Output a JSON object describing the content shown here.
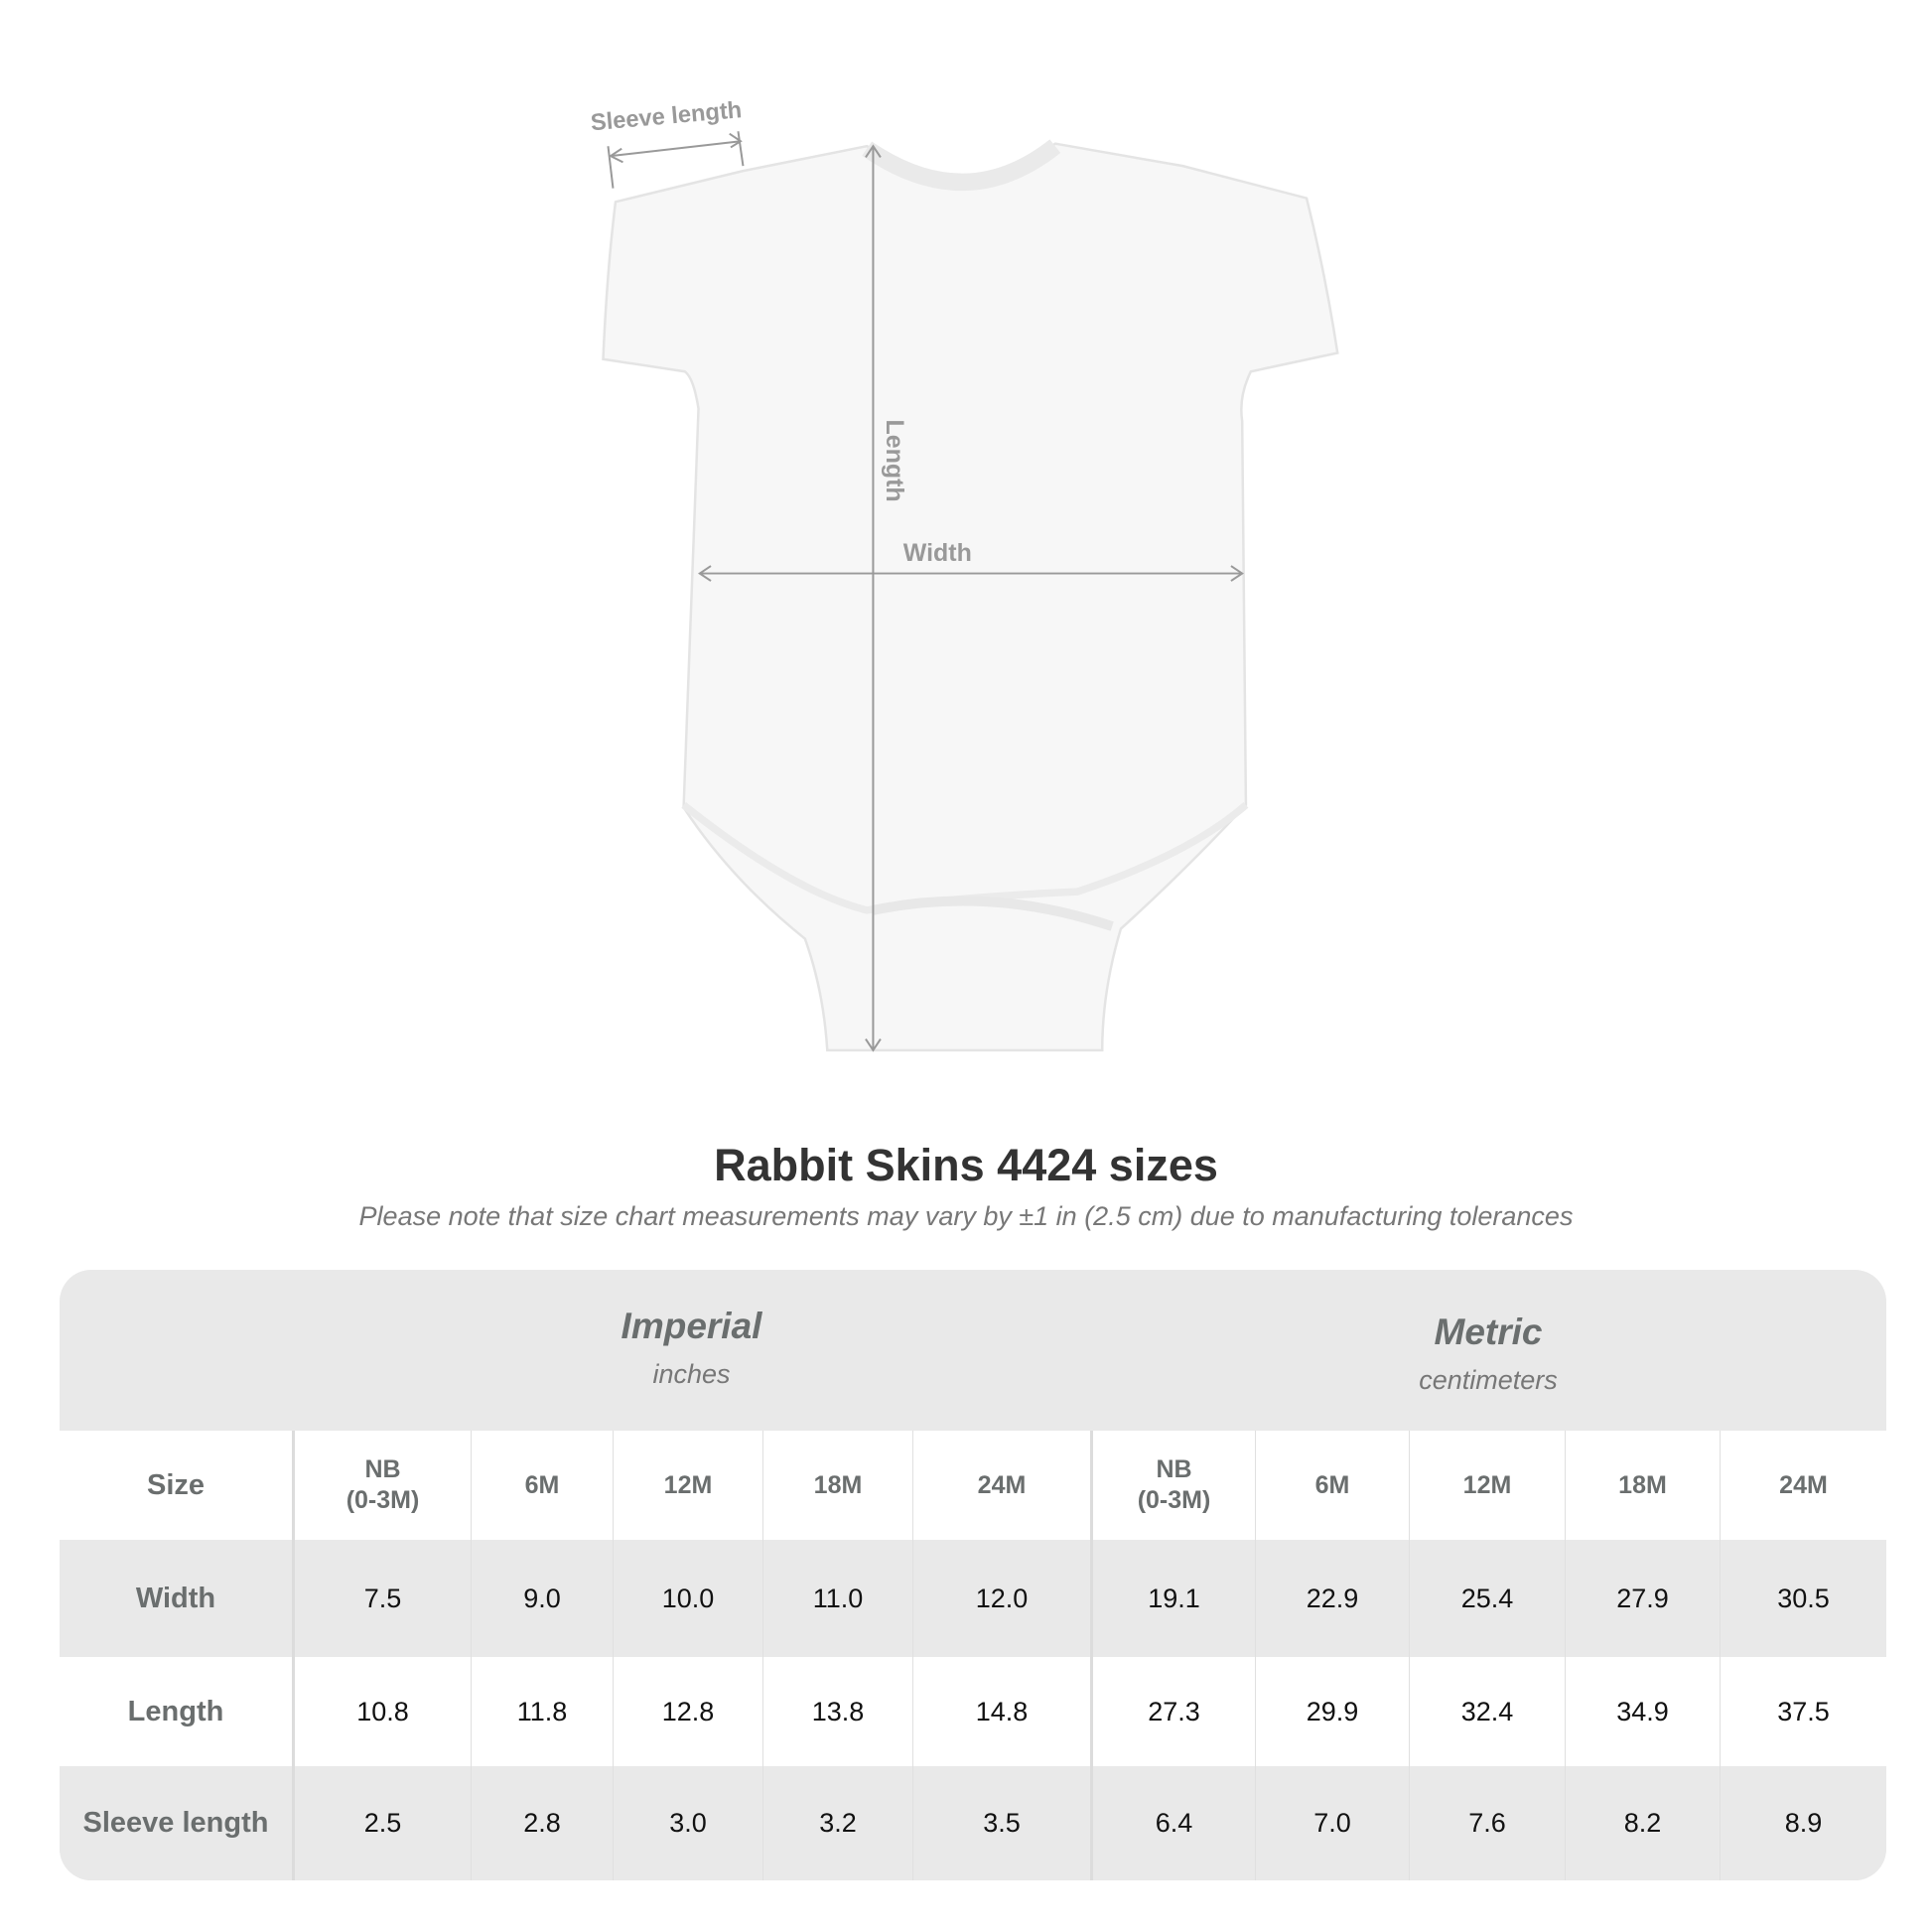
{
  "diagram": {
    "labels": {
      "sleeve": "Sleeve length",
      "length": "Length",
      "width": "Width"
    },
    "garment_color": "#f7f7f7",
    "arrow_color": "#999999"
  },
  "title": "Rabbit Skins 4424 sizes",
  "subtitle": "Please note that size chart measurements may vary by ±1 in (2.5 cm) due to manufacturing tolerances",
  "table": {
    "imperial": {
      "label": "Imperial",
      "unit": "inches"
    },
    "metric": {
      "label": "Metric",
      "unit": "centimeters"
    },
    "size_label": "Size",
    "sizes": [
      "NB\n(0-3M)",
      "6M",
      "12M",
      "18M",
      "24M"
    ],
    "rows": [
      {
        "label": "Width",
        "imperial": [
          "7.5",
          "9.0",
          "10.0",
          "11.0",
          "12.0"
        ],
        "metric": [
          "19.1",
          "22.9",
          "25.4",
          "27.9",
          "30.5"
        ]
      },
      {
        "label": "Length",
        "imperial": [
          "10.8",
          "11.8",
          "12.8",
          "13.8",
          "14.8"
        ],
        "metric": [
          "27.3",
          "29.9",
          "32.4",
          "34.9",
          "37.5"
        ]
      },
      {
        "label": "Sleeve length",
        "imperial": [
          "2.5",
          "2.8",
          "3.0",
          "3.2",
          "3.5"
        ],
        "metric": [
          "6.4",
          "7.0",
          "7.6",
          "8.2",
          "8.9"
        ]
      }
    ]
  }
}
